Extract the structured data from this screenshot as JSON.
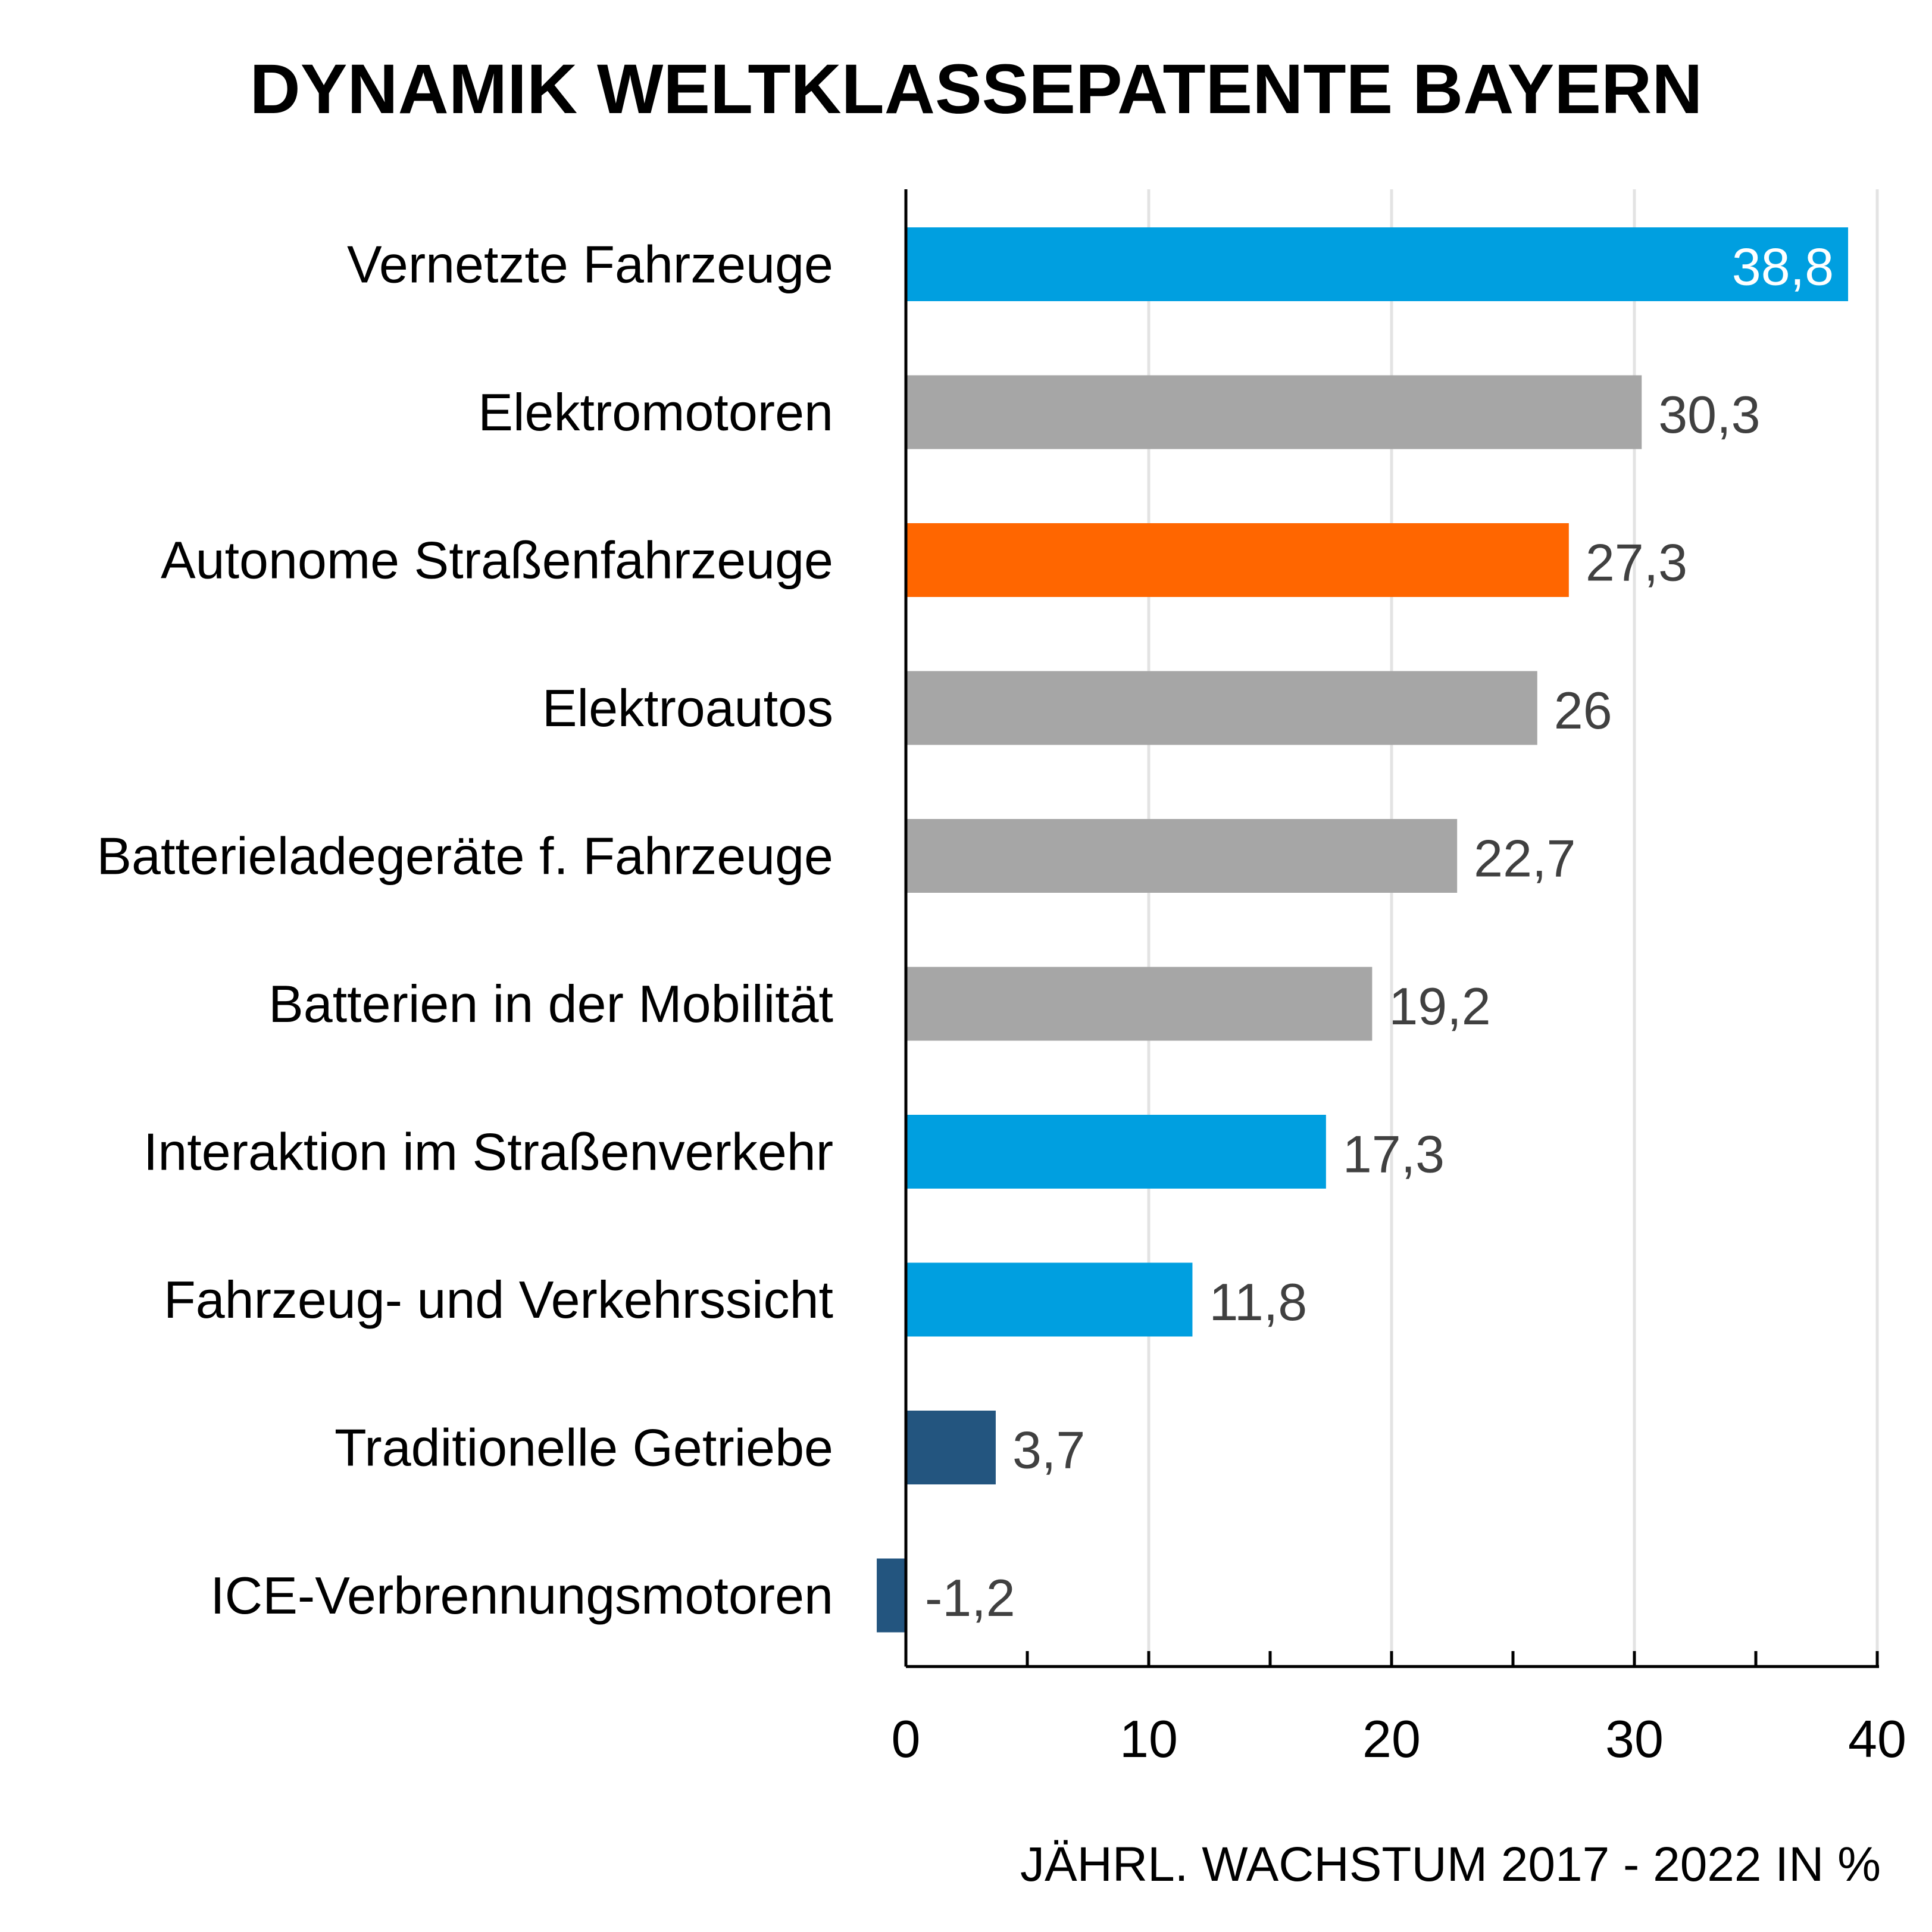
{
  "chart_data": {
    "type": "bar",
    "orientation": "horizontal",
    "title": "DYNAMIK WELTKLASSEPATENTE BAYERN",
    "xlabel": "JÄHRL. WACHSTUM 2017 - 2022 IN %",
    "ylabel": "",
    "xlim": [
      0,
      40
    ],
    "x_ticks": [
      0,
      10,
      20,
      30,
      40
    ],
    "minor_tick_step": 5,
    "grid": true,
    "categories": [
      "Vernetzte Fahrzeuge",
      "Elektromotoren",
      "Autonome Straßenfahrzeuge",
      "Elektroautos",
      "Batterieladegeräte f. Fahrzeuge",
      "Batterien in der Mobilität",
      "Interaktion im Straßenverkehr",
      "Fahrzeug- und Verkehrssicht",
      "Traditionelle Getriebe",
      "ICE-Verbrennungsmotoren"
    ],
    "values": [
      38.8,
      30.3,
      27.3,
      26,
      22.7,
      19.2,
      17.3,
      11.8,
      3.7,
      -1.2
    ],
    "value_labels": [
      "38,8",
      "30,3",
      "27,3",
      "26",
      "22,7",
      "19,2",
      "17,3",
      "11,8",
      "3,7",
      "-1,2"
    ],
    "tick_labels": [
      "0",
      "10",
      "20",
      "30",
      "40"
    ],
    "bar_colors": [
      "#009fe0",
      "#a6a6a6",
      "#ff6600",
      "#a6a6a6",
      "#a6a6a6",
      "#a6a6a6",
      "#009fe0",
      "#009fe0",
      "#23557f",
      "#23557f"
    ],
    "label_inside": [
      true,
      false,
      false,
      false,
      false,
      false,
      false,
      false,
      false,
      false
    ]
  }
}
